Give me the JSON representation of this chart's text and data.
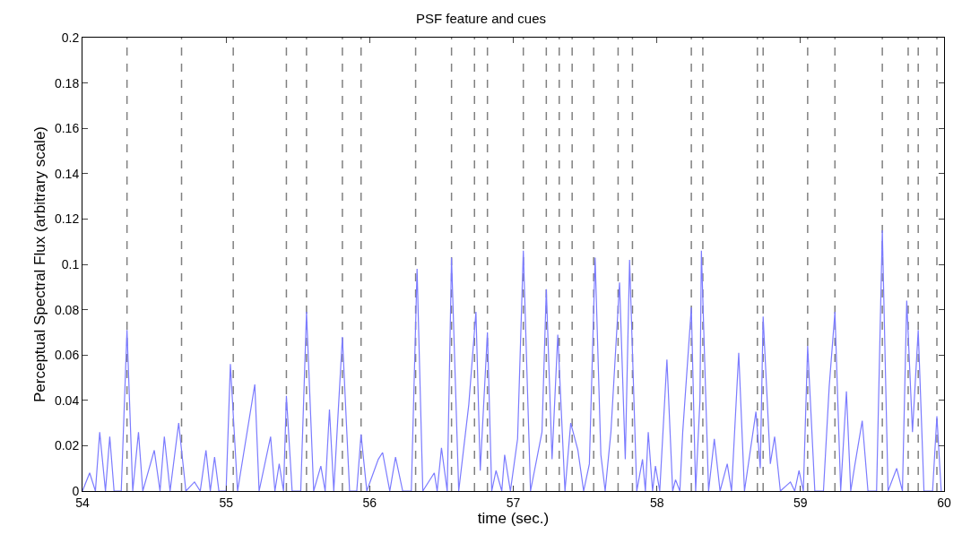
{
  "chart_data": {
    "type": "line",
    "title": "PSF feature and cues",
    "xlabel": "time (sec.)",
    "ylabel": "Perceptual Spectral Flux (arbitrary scale)",
    "xlim": [
      54,
      60
    ],
    "xticks": [
      54,
      55,
      56,
      57,
      58,
      59,
      60
    ],
    "ylim": [
      0,
      0.2
    ],
    "yticks": [
      0,
      0.02,
      0.04,
      0.06,
      0.08,
      0.1,
      0.12,
      0.14,
      0.16,
      0.18,
      0.2
    ],
    "grid": false,
    "marker": "none",
    "line_style": "solid",
    "series": [
      {
        "color": "#7b7bff",
        "x": [
          54.0,
          54.05,
          54.09,
          54.12,
          54.16,
          54.19,
          54.22,
          54.27,
          54.31,
          54.35,
          54.39,
          54.42,
          54.5,
          54.54,
          54.57,
          54.61,
          54.67,
          54.72,
          54.78,
          54.82,
          54.86,
          54.89,
          54.92,
          54.95,
          55.0,
          55.03,
          55.08,
          55.2,
          55.23,
          55.31,
          55.34,
          55.37,
          55.4,
          55.42,
          55.46,
          55.52,
          55.56,
          55.61,
          55.66,
          55.69,
          55.72,
          55.75,
          55.81,
          55.86,
          55.91,
          55.94,
          55.98,
          56.06,
          56.09,
          56.14,
          56.18,
          56.23,
          56.29,
          56.33,
          56.37,
          56.45,
          56.47,
          56.5,
          56.54,
          56.57,
          56.62,
          56.69,
          56.74,
          56.77,
          56.82,
          56.85,
          56.88,
          56.92,
          56.94,
          56.98,
          57.03,
          57.07,
          57.12,
          57.2,
          57.23,
          57.27,
          57.31,
          57.36,
          57.4,
          57.45,
          57.49,
          57.53,
          57.57,
          57.61,
          57.64,
          57.68,
          57.74,
          57.78,
          57.81,
          57.86,
          57.9,
          57.92,
          57.94,
          57.97,
          57.99,
          58.02,
          58.07,
          58.11,
          58.13,
          58.16,
          58.18,
          58.24,
          58.27,
          58.3,
          58.31,
          58.36,
          58.4,
          58.44,
          58.49,
          58.52,
          58.57,
          58.61,
          58.69,
          58.72,
          58.74,
          58.79,
          58.82,
          58.86,
          58.93,
          58.96,
          58.99,
          59.02,
          59.05,
          59.1,
          59.16,
          59.2,
          59.24,
          59.28,
          59.32,
          59.35,
          59.38,
          59.43,
          59.47,
          59.53,
          59.57,
          59.61,
          59.67,
          59.71,
          59.74,
          59.78,
          59.82,
          59.86,
          59.92,
          59.95,
          59.98
        ],
        "values": [
          0,
          0.008,
          0,
          0.026,
          0,
          0.024,
          0,
          0,
          0.071,
          0,
          0.026,
          0,
          0.018,
          0,
          0.024,
          0,
          0.03,
          0,
          0.004,
          0,
          0.018,
          0,
          0.015,
          0,
          0,
          0.056,
          0,
          0.047,
          0,
          0.024,
          0,
          0.012,
          0,
          0.042,
          0,
          0,
          0.079,
          0,
          0.011,
          0,
          0.036,
          0,
          0.068,
          0,
          0,
          0.025,
          0,
          0.014,
          0.017,
          0,
          0.015,
          0,
          0,
          0.098,
          0,
          0.008,
          0,
          0.019,
          0,
          0.103,
          0,
          0.038,
          0.079,
          0.009,
          0.07,
          0,
          0.009,
          0,
          0.016,
          0,
          0.023,
          0.106,
          0,
          0.026,
          0.089,
          0.014,
          0.069,
          0,
          0.03,
          0.018,
          0,
          0.012,
          0.103,
          0.016,
          0,
          0.026,
          0.092,
          0.014,
          0.102,
          0,
          0.014,
          0,
          0.026,
          0,
          0.011,
          0,
          0.058,
          0,
          0.005,
          0,
          0.026,
          0.081,
          0,
          0.04,
          0.106,
          0,
          0.023,
          0,
          0.012,
          0,
          0.061,
          0,
          0.035,
          0.01,
          0.077,
          0.012,
          0.024,
          0,
          0.004,
          0,
          0.009,
          0,
          0.064,
          0,
          0,
          0.046,
          0.079,
          0,
          0.044,
          0,
          0.012,
          0.031,
          0,
          0,
          0.115,
          0,
          0.01,
          0,
          0.084,
          0.026,
          0.071,
          0,
          0,
          0.033,
          0
        ]
      }
    ],
    "ref_lines": [
      {
        "axis": "x",
        "value": 54.31,
        "color": "#808080",
        "line_style": "dashed"
      },
      {
        "axis": "x",
        "value": 54.69,
        "color": "#808080",
        "line_style": "dashed"
      },
      {
        "axis": "x",
        "value": 55.05,
        "color": "#808080",
        "line_style": "dashed"
      },
      {
        "axis": "x",
        "value": 55.42,
        "color": "#808080",
        "line_style": "dashed"
      },
      {
        "axis": "x",
        "value": 55.56,
        "color": "#808080",
        "line_style": "dashed"
      },
      {
        "axis": "x",
        "value": 55.81,
        "color": "#808080",
        "line_style": "dashed"
      },
      {
        "axis": "x",
        "value": 55.94,
        "color": "#808080",
        "line_style": "dashed"
      },
      {
        "axis": "x",
        "value": 56.32,
        "color": "#808080",
        "line_style": "dashed"
      },
      {
        "axis": "x",
        "value": 56.57,
        "color": "#808080",
        "line_style": "dashed"
      },
      {
        "axis": "x",
        "value": 56.73,
        "color": "#808080",
        "line_style": "dashed"
      },
      {
        "axis": "x",
        "value": 56.82,
        "color": "#808080",
        "line_style": "dashed"
      },
      {
        "axis": "x",
        "value": 57.07,
        "color": "#808080",
        "line_style": "dashed"
      },
      {
        "axis": "x",
        "value": 57.23,
        "color": "#808080",
        "line_style": "dashed"
      },
      {
        "axis": "x",
        "value": 57.32,
        "color": "#808080",
        "line_style": "dashed"
      },
      {
        "axis": "x",
        "value": 57.41,
        "color": "#808080",
        "line_style": "dashed"
      },
      {
        "axis": "x",
        "value": 57.56,
        "color": "#808080",
        "line_style": "dashed"
      },
      {
        "axis": "x",
        "value": 57.73,
        "color": "#808080",
        "line_style": "dashed"
      },
      {
        "axis": "x",
        "value": 57.83,
        "color": "#808080",
        "line_style": "dashed"
      },
      {
        "axis": "x",
        "value": 58.24,
        "color": "#808080",
        "line_style": "dashed"
      },
      {
        "axis": "x",
        "value": 58.32,
        "color": "#808080",
        "line_style": "dashed"
      },
      {
        "axis": "x",
        "value": 58.7,
        "color": "#808080",
        "line_style": "dashed"
      },
      {
        "axis": "x",
        "value": 58.74,
        "color": "#808080",
        "line_style": "dashed"
      },
      {
        "axis": "x",
        "value": 59.05,
        "color": "#808080",
        "line_style": "dashed"
      },
      {
        "axis": "x",
        "value": 59.24,
        "color": "#808080",
        "line_style": "dashed"
      },
      {
        "axis": "x",
        "value": 59.57,
        "color": "#808080",
        "line_style": "dashed"
      },
      {
        "axis": "x",
        "value": 59.75,
        "color": "#808080",
        "line_style": "dashed"
      },
      {
        "axis": "x",
        "value": 59.82,
        "color": "#808080",
        "line_style": "dashed"
      },
      {
        "axis": "x",
        "value": 59.95,
        "color": "#808080",
        "line_style": "dashed"
      }
    ]
  }
}
